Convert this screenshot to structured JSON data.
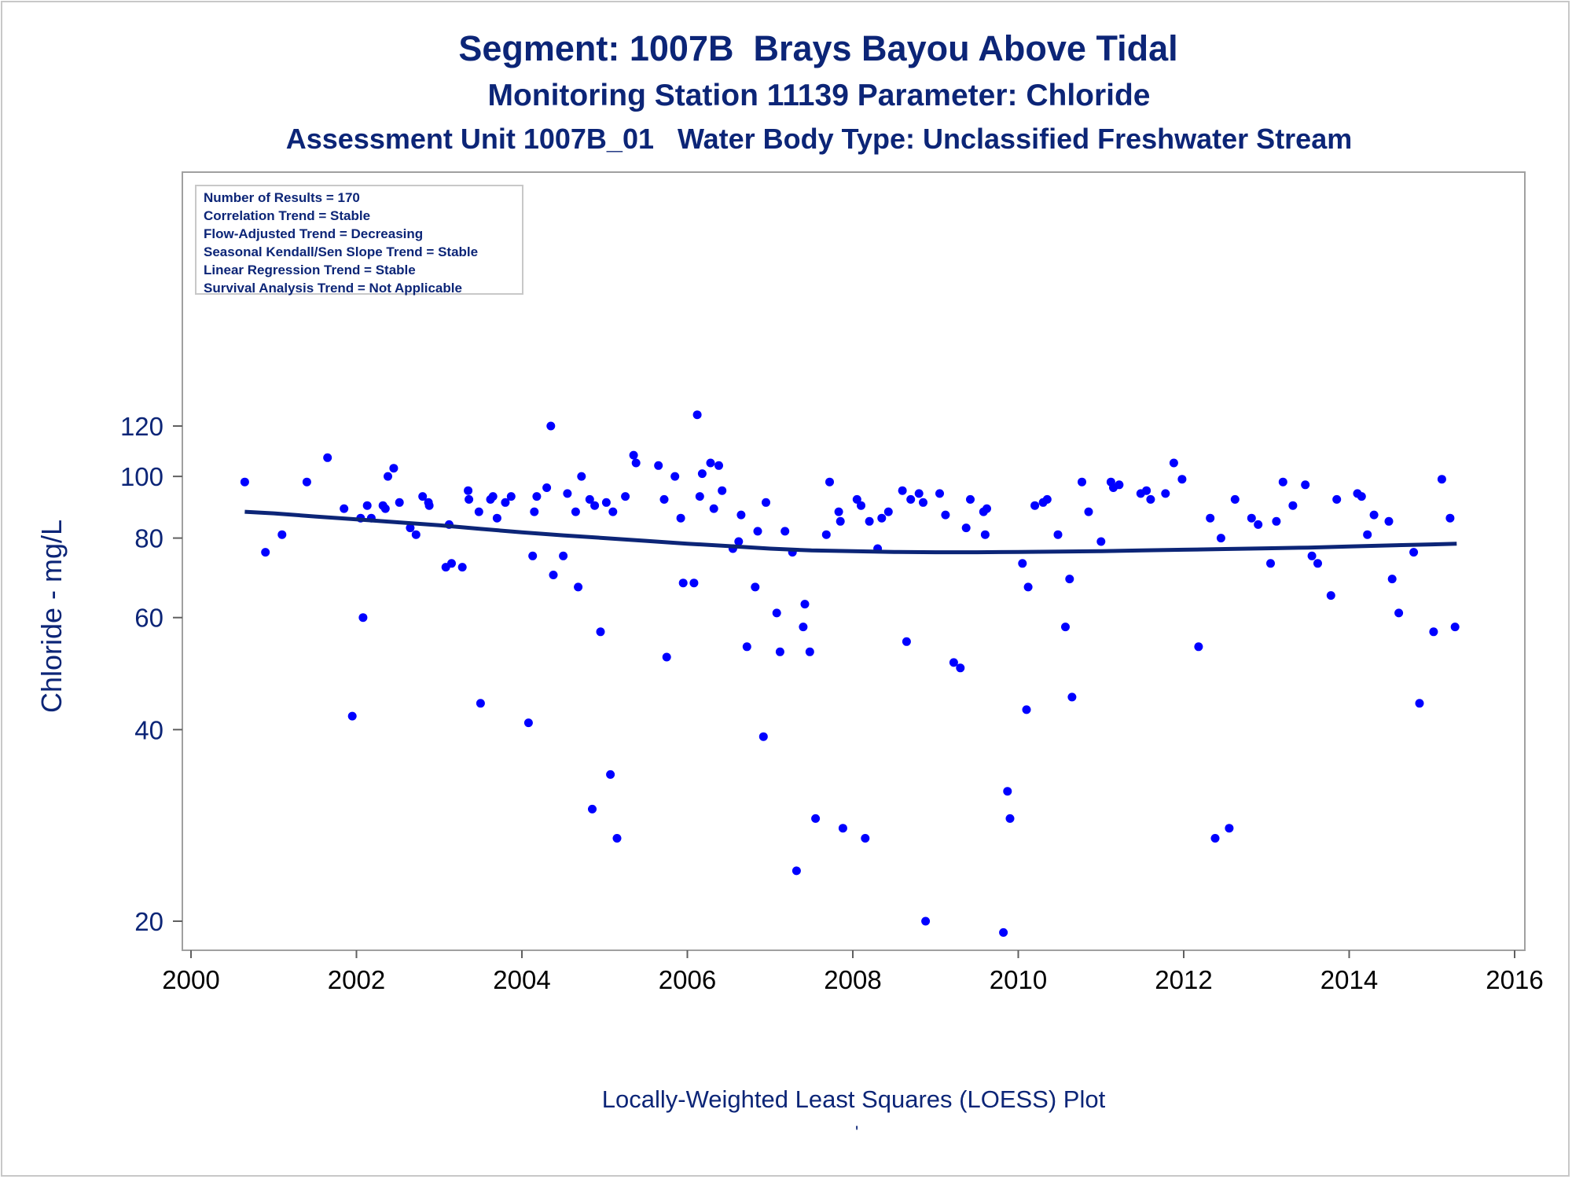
{
  "titles": {
    "line1": "Segment: 1007B  Brays Bayou Above Tidal",
    "line2": "Monitoring Station 11139 Parameter: Chloride",
    "line3": "Assessment Unit 1007B_01   Water Body Type: Unclassified Freshwater Stream"
  },
  "legend": [
    "Number of Results = 170",
    "Correlation Trend = Stable",
    "Flow-Adjusted Trend = Decreasing",
    "Seasonal Kendall/Sen Slope Trend = Stable",
    "Linear Regression Trend = Stable",
    "Survival Analysis Trend = Not Applicable"
  ],
  "footnote": "Locally-Weighted Least Squares (LOESS) Plot",
  "stray_mark": "'",
  "colors": {
    "text": "#0c2577",
    "points": "#0000ff",
    "loess": "#0c2577",
    "frame": "#a0a0a0"
  },
  "chart_data": {
    "type": "scatter",
    "y_scale": "log",
    "xlabel": "",
    "ylabel": "Chloride - mg/L",
    "xlim": [
      2000,
      2016
    ],
    "ylim": [
      18.9,
      130
    ],
    "x_ticks": [
      2000,
      2002,
      2004,
      2006,
      2008,
      2010,
      2012,
      2014,
      2016
    ],
    "y_ticks": [
      20,
      40,
      60,
      80,
      100,
      120
    ],
    "grid": false,
    "legend_position": "top-left",
    "series": [
      {
        "name": "",
        "type": "scatter",
        "points": [
          [
            2000.65,
            98
          ],
          [
            2000.9,
            76
          ],
          [
            2001.1,
            81
          ],
          [
            2001.4,
            98
          ],
          [
            2001.65,
            107
          ],
          [
            2001.85,
            89
          ],
          [
            2001.95,
            42
          ],
          [
            2002.05,
            86
          ],
          [
            2002.08,
            60
          ],
          [
            2002.13,
            90
          ],
          [
            2002.18,
            86
          ],
          [
            2002.32,
            90
          ],
          [
            2002.35,
            89
          ],
          [
            2002.38,
            100
          ],
          [
            2002.45,
            103
          ],
          [
            2002.52,
            91
          ],
          [
            2002.65,
            83
          ],
          [
            2002.72,
            81
          ],
          [
            2002.8,
            93
          ],
          [
            2002.87,
            91
          ],
          [
            2002.88,
            90
          ],
          [
            2003.08,
            72
          ],
          [
            2003.12,
            84
          ],
          [
            2003.15,
            73
          ],
          [
            2003.28,
            72
          ],
          [
            2003.35,
            95
          ],
          [
            2003.36,
            92
          ],
          [
            2003.48,
            88
          ],
          [
            2003.5,
            44
          ],
          [
            2003.62,
            92
          ],
          [
            2003.65,
            93
          ],
          [
            2003.7,
            86
          ],
          [
            2003.8,
            91
          ],
          [
            2003.87,
            93
          ],
          [
            2004.08,
            41
          ],
          [
            2004.13,
            75
          ],
          [
            2004.15,
            88
          ],
          [
            2004.18,
            93
          ],
          [
            2004.3,
            96
          ],
          [
            2004.35,
            120
          ],
          [
            2004.38,
            70
          ],
          [
            2004.5,
            75
          ],
          [
            2004.55,
            94
          ],
          [
            2004.65,
            88
          ],
          [
            2004.68,
            67
          ],
          [
            2004.72,
            100
          ],
          [
            2004.82,
            92
          ],
          [
            2004.85,
            30
          ],
          [
            2004.88,
            90
          ],
          [
            2004.95,
            57
          ],
          [
            2005.02,
            91
          ],
          [
            2005.07,
            34
          ],
          [
            2005.1,
            88
          ],
          [
            2005.15,
            27
          ],
          [
            2005.25,
            93
          ],
          [
            2005.35,
            108
          ],
          [
            2005.38,
            105
          ],
          [
            2005.65,
            104
          ],
          [
            2005.72,
            92
          ],
          [
            2005.75,
            52
          ],
          [
            2005.85,
            100
          ],
          [
            2005.92,
            86
          ],
          [
            2005.95,
            68
          ],
          [
            2006.08,
            68
          ],
          [
            2006.12,
            125
          ],
          [
            2006.15,
            93
          ],
          [
            2006.18,
            101
          ],
          [
            2006.28,
            105
          ],
          [
            2006.32,
            89
          ],
          [
            2006.38,
            104
          ],
          [
            2006.42,
            95
          ],
          [
            2006.55,
            77
          ],
          [
            2006.62,
            79
          ],
          [
            2006.65,
            87
          ],
          [
            2006.72,
            54
          ],
          [
            2006.82,
            67
          ],
          [
            2006.85,
            82
          ],
          [
            2006.92,
            39
          ],
          [
            2006.95,
            91
          ],
          [
            2007.08,
            61
          ],
          [
            2007.12,
            53
          ],
          [
            2007.18,
            82
          ],
          [
            2007.27,
            76
          ],
          [
            2007.32,
            24
          ],
          [
            2007.4,
            58
          ],
          [
            2007.42,
            63
          ],
          [
            2007.48,
            53
          ],
          [
            2007.55,
            29
          ],
          [
            2007.68,
            81
          ],
          [
            2007.72,
            98
          ],
          [
            2007.83,
            88
          ],
          [
            2007.85,
            85
          ],
          [
            2007.88,
            28
          ],
          [
            2008.05,
            92
          ],
          [
            2008.1,
            90
          ],
          [
            2008.15,
            27
          ],
          [
            2008.2,
            85
          ],
          [
            2008.3,
            77
          ],
          [
            2008.35,
            86
          ],
          [
            2008.43,
            88
          ],
          [
            2008.6,
            95
          ],
          [
            2008.65,
            55
          ],
          [
            2008.7,
            92
          ],
          [
            2008.8,
            94
          ],
          [
            2008.85,
            91
          ],
          [
            2008.88,
            20
          ],
          [
            2009.05,
            94
          ],
          [
            2009.12,
            87
          ],
          [
            2009.22,
            51
          ],
          [
            2009.3,
            50
          ],
          [
            2009.37,
            83
          ],
          [
            2009.42,
            92
          ],
          [
            2009.58,
            88
          ],
          [
            2009.6,
            81
          ],
          [
            2009.62,
            89
          ],
          [
            2009.82,
            19.2
          ],
          [
            2009.87,
            32
          ],
          [
            2009.9,
            29
          ],
          [
            2010.05,
            73
          ],
          [
            2010.1,
            43
          ],
          [
            2010.12,
            67
          ],
          [
            2010.2,
            90
          ],
          [
            2010.3,
            91
          ],
          [
            2010.35,
            92
          ],
          [
            2010.48,
            81
          ],
          [
            2010.57,
            58
          ],
          [
            2010.62,
            69
          ],
          [
            2010.65,
            45
          ],
          [
            2010.77,
            98
          ],
          [
            2010.85,
            88
          ],
          [
            2011.0,
            79
          ],
          [
            2011.12,
            98
          ],
          [
            2011.15,
            96
          ],
          [
            2011.22,
            97
          ],
          [
            2011.48,
            94
          ],
          [
            2011.55,
            95
          ],
          [
            2011.6,
            92
          ],
          [
            2011.78,
            94
          ],
          [
            2011.88,
            105
          ],
          [
            2011.98,
            99
          ],
          [
            2012.18,
            54
          ],
          [
            2012.32,
            86
          ],
          [
            2012.38,
            27
          ],
          [
            2012.45,
            80
          ],
          [
            2012.55,
            28
          ],
          [
            2012.62,
            92
          ],
          [
            2012.82,
            86
          ],
          [
            2012.9,
            84
          ],
          [
            2013.05,
            73
          ],
          [
            2013.12,
            85
          ],
          [
            2013.2,
            98
          ],
          [
            2013.32,
            90
          ],
          [
            2013.47,
            97
          ],
          [
            2013.55,
            75
          ],
          [
            2013.62,
            73
          ],
          [
            2013.78,
            65
          ],
          [
            2013.85,
            92
          ],
          [
            2014.1,
            94
          ],
          [
            2014.15,
            93
          ],
          [
            2014.22,
            81
          ],
          [
            2014.3,
            87
          ],
          [
            2014.48,
            85
          ],
          [
            2014.52,
            69
          ],
          [
            2014.6,
            61
          ],
          [
            2014.78,
            76
          ],
          [
            2014.85,
            44
          ],
          [
            2015.02,
            57
          ],
          [
            2015.12,
            99
          ],
          [
            2015.22,
            86
          ],
          [
            2015.28,
            58
          ]
        ]
      },
      {
        "name": "",
        "type": "line",
        "points": [
          [
            2000.65,
            88
          ],
          [
            2001.0,
            87.5
          ],
          [
            2001.5,
            86.5
          ],
          [
            2002.0,
            85.6
          ],
          [
            2002.5,
            84.7
          ],
          [
            2003.0,
            83.8
          ],
          [
            2003.5,
            82.7
          ],
          [
            2004.0,
            81.7
          ],
          [
            2004.5,
            80.8
          ],
          [
            2005.0,
            80.0
          ],
          [
            2005.5,
            79.2
          ],
          [
            2006.0,
            78.4
          ],
          [
            2006.5,
            77.7
          ],
          [
            2007.0,
            77.0
          ],
          [
            2007.5,
            76.5
          ],
          [
            2008.0,
            76.3
          ],
          [
            2008.5,
            76.1
          ],
          [
            2009.0,
            76.0
          ],
          [
            2009.5,
            76.0
          ],
          [
            2010.0,
            76.1
          ],
          [
            2010.5,
            76.2
          ],
          [
            2011.0,
            76.3
          ],
          [
            2011.5,
            76.5
          ],
          [
            2012.0,
            76.7
          ],
          [
            2012.5,
            76.9
          ],
          [
            2013.0,
            77.1
          ],
          [
            2013.5,
            77.3
          ],
          [
            2014.0,
            77.6
          ],
          [
            2014.5,
            77.9
          ],
          [
            2015.0,
            78.2
          ],
          [
            2015.3,
            78.4
          ]
        ]
      }
    ]
  }
}
